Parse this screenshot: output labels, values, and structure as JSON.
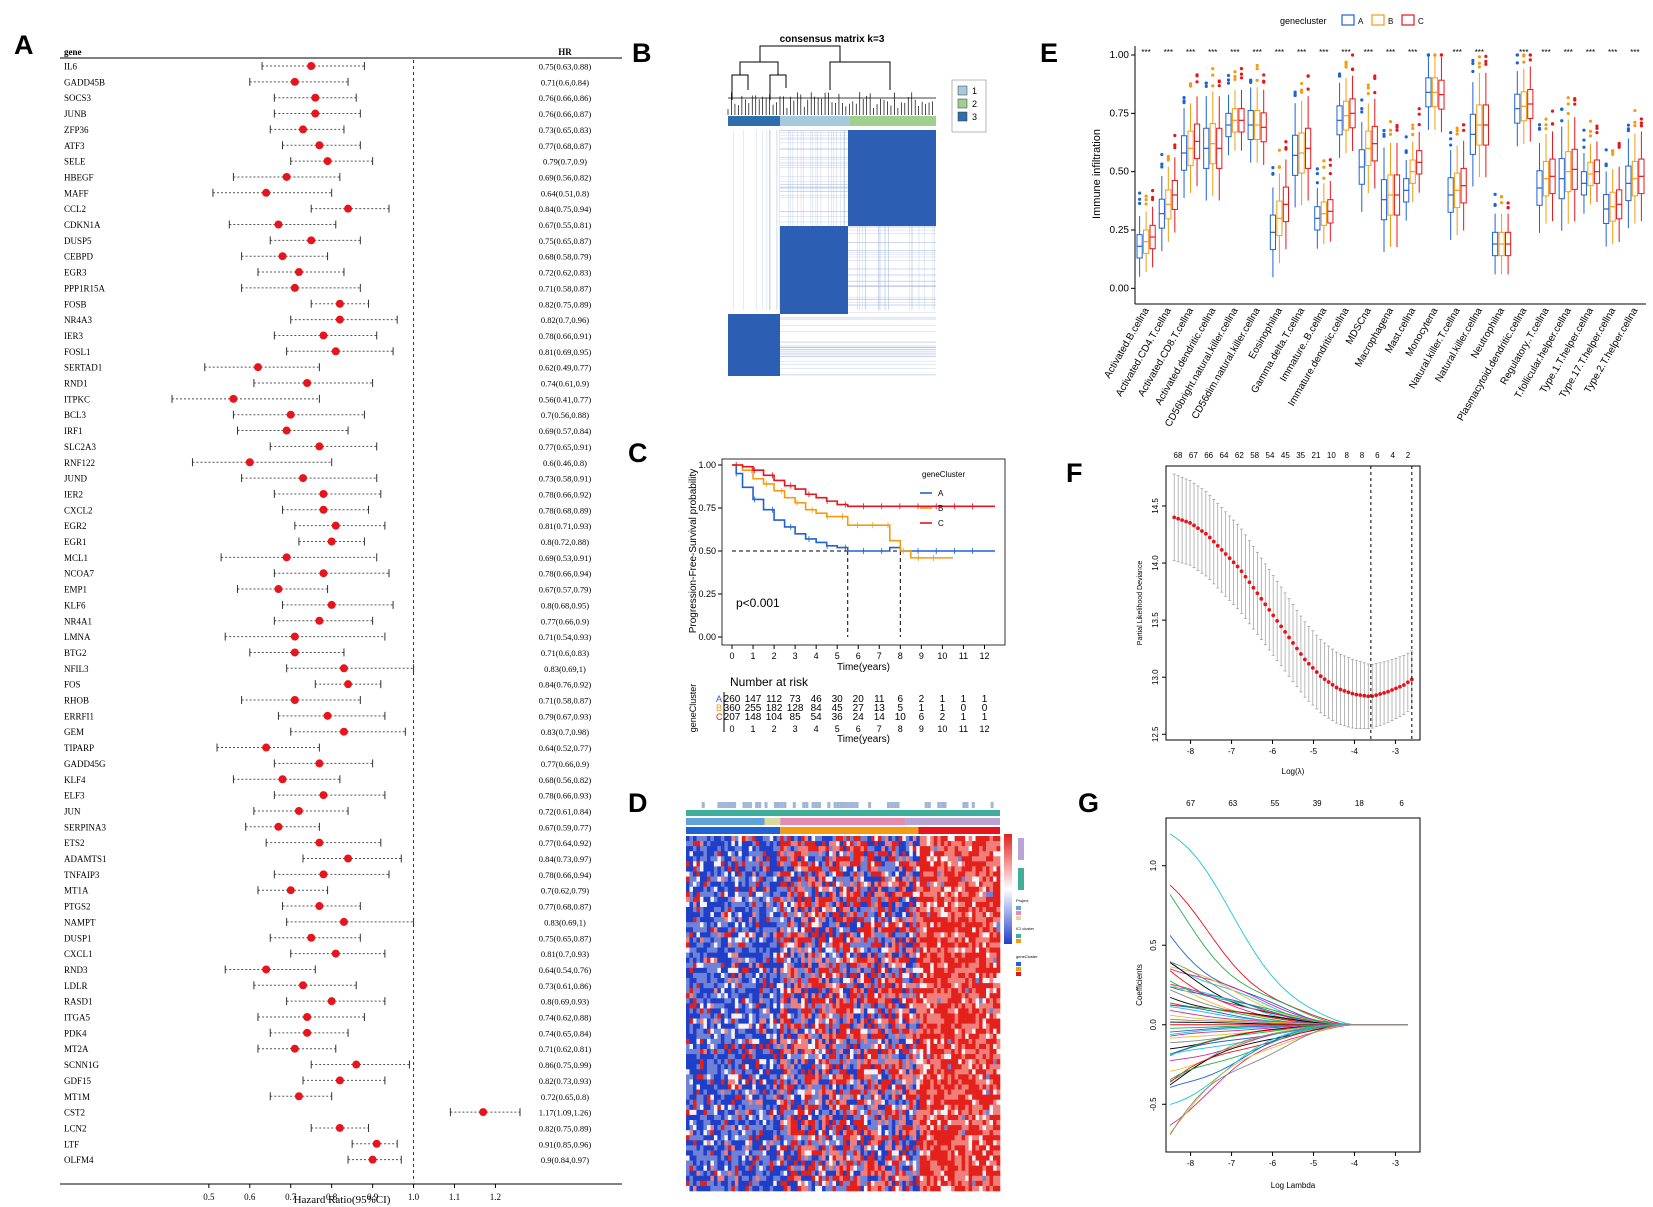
{
  "panel_labels": {
    "A": "A",
    "B": "B",
    "C": "C",
    "D": "D",
    "E": "E",
    "F": "F",
    "G": "G"
  },
  "colors": {
    "red": "#e8141b",
    "blue": "#1f62d6",
    "orange": "#f39c12",
    "grey": "#888888",
    "heat_blue": "#1f3fc9",
    "heat_red": "#e3201b"
  },
  "chart_data": [
    {
      "id": "A",
      "type": "forest",
      "col_gene": "gene",
      "col_hr": "HR",
      "xlabel": "Hazard Ratio(95%CI)",
      "xticks": [
        "0.5",
        "0.6",
        "0.7",
        "0.8",
        "0.9",
        "1.0",
        "1.1",
        "1.2"
      ],
      "xlim": [
        0.41,
        1.26
      ],
      "genes": [
        "IL6",
        "GADD45B",
        "SOCS3",
        "JUNB",
        "ZFP36",
        "ATF3",
        "SELE",
        "HBEGF",
        "MAFF",
        "CCL2",
        "CDKN1A",
        "DUSP5",
        "CEBPD",
        "EGR3",
        "PPP1R15A",
        "FOSB",
        "NR4A3",
        "IER3",
        "FOSL1",
        "SERTAD1",
        "RND1",
        "ITPKC",
        "BCL3",
        "IRF1",
        "SLC2A3",
        "RNF122",
        "JUND",
        "IER2",
        "CXCL2",
        "EGR2",
        "EGR1",
        "MCL1",
        "NCOA7",
        "EMP1",
        "KLF6",
        "NR4A1",
        "LMNA",
        "BTG2",
        "NFIL3",
        "FOS",
        "RHOB",
        "ERRFI1",
        "GEM",
        "TIPARP",
        "GADD45G",
        "KLF4",
        "ELF3",
        "JUN",
        "SERPINA3",
        "ETS2",
        "ADAMTS1",
        "TNFAIP3",
        "MT1A",
        "PTGS2",
        "NAMPT",
        "DUSP1",
        "CXCL1",
        "RND3",
        "LDLR",
        "RASD1",
        "ITGA5",
        "PDK4",
        "MT2A",
        "SCNN1G",
        "GDF15",
        "MT1M",
        "CST2",
        "LCN2",
        "LTF",
        "OLFM4"
      ],
      "hr_labels": [
        "0.75(0.63,0.88)",
        "0.71(0.6,0.84)",
        "0.76(0.66,0.86)",
        "0.76(0.66,0.87)",
        "0.73(0.65,0.83)",
        "0.77(0.68,0.87)",
        "0.79(0.7,0.9)",
        "0.69(0.56,0.82)",
        "0.64(0.51,0.8)",
        "0.84(0.75,0.94)",
        "0.67(0.55,0.81)",
        "0.75(0.65,0.87)",
        "0.68(0.58,0.79)",
        "0.72(0.62,0.83)",
        "0.71(0.58,0.87)",
        "0.82(0.75,0.89)",
        "0.82(0.7,0.96)",
        "0.78(0.66,0.91)",
        "0.81(0.69,0.95)",
        "0.62(0.49,0.77)",
        "0.74(0.61,0.9)",
        "0.56(0.41,0.77)",
        "0.7(0.56,0.88)",
        "0.69(0.57,0.84)",
        "0.77(0.65,0.91)",
        "0.6(0.46,0.8)",
        "0.73(0.58,0.91)",
        "0.78(0.66,0.92)",
        "0.78(0.68,0.89)",
        "0.81(0.71,0.93)",
        "0.8(0.72,0.88)",
        "0.69(0.53,0.91)",
        "0.78(0.66,0.94)",
        "0.67(0.57,0.79)",
        "0.8(0.68,0.95)",
        "0.77(0.66,0.9)",
        "0.71(0.54,0.93)",
        "0.71(0.6,0.83)",
        "0.83(0.69,1)",
        "0.84(0.76,0.92)",
        "0.71(0.58,0.87)",
        "0.79(0.67,0.93)",
        "0.83(0.7,0.98)",
        "0.64(0.52,0.77)",
        "0.77(0.66,0.9)",
        "0.68(0.56,0.82)",
        "0.78(0.66,0.93)",
        "0.72(0.61,0.84)",
        "0.67(0.59,0.77)",
        "0.77(0.64,0.92)",
        "0.84(0.73,0.97)",
        "0.78(0.66,0.94)",
        "0.7(0.62,0.79)",
        "0.77(0.68,0.87)",
        "0.83(0.69,1)",
        "0.75(0.65,0.87)",
        "0.81(0.7,0.93)",
        "0.64(0.54,0.76)",
        "0.73(0.61,0.86)",
        "0.8(0.69,0.93)",
        "0.74(0.62,0.88)",
        "0.74(0.65,0.84)",
        "0.71(0.62,0.81)",
        "0.86(0.75,0.99)",
        "0.82(0.73,0.93)",
        "0.72(0.65,0.8)",
        "1.17(1.09,1.26)",
        "0.82(0.75,0.89)",
        "0.91(0.85,0.96)",
        "0.9(0.84,0.97)"
      ],
      "hr": [
        0.75,
        0.71,
        0.76,
        0.76,
        0.73,
        0.77,
        0.79,
        0.69,
        0.64,
        0.84,
        0.67,
        0.75,
        0.68,
        0.72,
        0.71,
        0.82,
        0.82,
        0.78,
        0.81,
        0.62,
        0.74,
        0.56,
        0.7,
        0.69,
        0.77,
        0.6,
        0.73,
        0.78,
        0.78,
        0.81,
        0.8,
        0.69,
        0.78,
        0.67,
        0.8,
        0.77,
        0.71,
        0.71,
        0.83,
        0.84,
        0.71,
        0.79,
        0.83,
        0.64,
        0.77,
        0.68,
        0.78,
        0.72,
        0.67,
        0.77,
        0.84,
        0.78,
        0.7,
        0.77,
        0.83,
        0.75,
        0.81,
        0.64,
        0.73,
        0.8,
        0.74,
        0.74,
        0.71,
        0.86,
        0.82,
        0.72,
        1.17,
        0.82,
        0.91,
        0.9
      ],
      "lower": [
        0.63,
        0.6,
        0.66,
        0.66,
        0.65,
        0.68,
        0.7,
        0.56,
        0.51,
        0.75,
        0.55,
        0.65,
        0.58,
        0.62,
        0.58,
        0.75,
        0.7,
        0.66,
        0.69,
        0.49,
        0.61,
        0.41,
        0.56,
        0.57,
        0.65,
        0.46,
        0.58,
        0.66,
        0.68,
        0.71,
        0.72,
        0.53,
        0.66,
        0.57,
        0.68,
        0.66,
        0.54,
        0.6,
        0.69,
        0.76,
        0.58,
        0.67,
        0.7,
        0.52,
        0.66,
        0.56,
        0.66,
        0.61,
        0.59,
        0.64,
        0.73,
        0.66,
        0.62,
        0.68,
        0.69,
        0.65,
        0.7,
        0.54,
        0.61,
        0.69,
        0.62,
        0.65,
        0.62,
        0.75,
        0.73,
        0.65,
        1.09,
        0.75,
        0.85,
        0.84
      ],
      "upper": [
        0.88,
        0.84,
        0.86,
        0.87,
        0.83,
        0.87,
        0.9,
        0.82,
        0.8,
        0.94,
        0.81,
        0.87,
        0.79,
        0.83,
        0.87,
        0.89,
        0.96,
        0.91,
        0.95,
        0.77,
        0.9,
        0.77,
        0.88,
        0.84,
        0.91,
        0.8,
        0.91,
        0.92,
        0.89,
        0.93,
        0.88,
        0.91,
        0.94,
        0.79,
        0.95,
        0.9,
        0.93,
        0.83,
        1.0,
        0.92,
        0.87,
        0.93,
        0.98,
        0.77,
        0.9,
        0.82,
        0.93,
        0.84,
        0.77,
        0.92,
        0.97,
        0.94,
        0.79,
        0.87,
        1.0,
        0.87,
        0.93,
        0.76,
        0.86,
        0.93,
        0.88,
        0.84,
        0.81,
        0.99,
        0.93,
        0.8,
        1.26,
        0.89,
        0.96,
        0.97
      ]
    },
    {
      "id": "B",
      "type": "heatmap",
      "title": "consensus matrix k=3",
      "legend": [
        "1",
        "2",
        "3"
      ],
      "legend_colors": [
        "#a6c9dc",
        "#9fd08f",
        "#2e6eaa"
      ]
    },
    {
      "id": "C",
      "type": "line",
      "ylabel": "Progression-Free-Survival probability",
      "xlabel": "Time(years)",
      "xticks": [
        "0",
        "1",
        "2",
        "3",
        "4",
        "5",
        "6",
        "7",
        "8",
        "9",
        "10",
        "11",
        "12"
      ],
      "yticks": [
        "0.00",
        "0.25",
        "0.50",
        "0.75",
        "1.00"
      ],
      "xlim": [
        0,
        12.5
      ],
      "ylim": [
        0,
        1
      ],
      "pvalue": "p<0.001",
      "legend_title": "geneCluster",
      "series": [
        {
          "name": "A",
          "color": "#1f62d6",
          "x": [
            0,
            0.2,
            0.5,
            1,
            1.5,
            2,
            2.5,
            3,
            3.5,
            4,
            4.5,
            5,
            5.5,
            6,
            7,
            7.5,
            8,
            8.5,
            9,
            10,
            11,
            12,
            12.5
          ],
          "y": [
            1,
            0.95,
            0.87,
            0.8,
            0.74,
            0.68,
            0.64,
            0.6,
            0.57,
            0.55,
            0.53,
            0.52,
            0.5,
            0.5,
            0.5,
            0.52,
            0.5,
            0.5,
            0.5,
            0.5,
            0.5,
            0.5,
            0.5
          ]
        },
        {
          "name": "B",
          "color": "#f39c12",
          "x": [
            0,
            0.5,
            1,
            1.5,
            2,
            2.5,
            3,
            3.5,
            4,
            4.5,
            5,
            5.5,
            6,
            7,
            7.5,
            8,
            8.5,
            9,
            10,
            10.5
          ],
          "y": [
            1,
            0.97,
            0.92,
            0.89,
            0.85,
            0.81,
            0.78,
            0.74,
            0.72,
            0.7,
            0.7,
            0.65,
            0.65,
            0.65,
            0.56,
            0.5,
            0.46,
            0.46,
            0.46,
            0.46
          ]
        },
        {
          "name": "C",
          "color": "#e8141b",
          "x": [
            0,
            0.5,
            1,
            1.5,
            2,
            2.5,
            3,
            3.5,
            4,
            4.5,
            5,
            5.5,
            6,
            7,
            8,
            9,
            10,
            11,
            12,
            12.5
          ],
          "y": [
            1,
            0.99,
            0.97,
            0.94,
            0.91,
            0.88,
            0.86,
            0.83,
            0.81,
            0.79,
            0.77,
            0.76,
            0.76,
            0.76,
            0.76,
            0.76,
            0.76,
            0.76,
            0.76,
            0.76
          ]
        }
      ],
      "risk_table": {
        "title": "Number at risk",
        "ylabel": "geneCluster",
        "xlabel": "Time(years)",
        "rows": [
          {
            "name": "A",
            "values": [
              "260",
              "147",
              "112",
              "73",
              "46",
              "30",
              "20",
              "11",
              "6",
              "2",
              "1",
              "1",
              "1"
            ]
          },
          {
            "name": "B",
            "values": [
              "360",
              "255",
              "182",
              "128",
              "84",
              "45",
              "27",
              "13",
              "5",
              "1",
              "1",
              "0",
              "0"
            ]
          },
          {
            "name": "C",
            "values": [
              "207",
              "148",
              "104",
              "85",
              "54",
              "36",
              "24",
              "14",
              "10",
              "6",
              "2",
              "1",
              "1"
            ]
          }
        ]
      }
    },
    {
      "id": "D",
      "type": "heatmap",
      "legend_labels": [
        "Project",
        "ICI cluster",
        "geneCluster"
      ]
    },
    {
      "id": "E",
      "type": "box",
      "legend_title": "genecluster",
      "ylabel": "Immune infiltration",
      "yticks": [
        "0.00",
        "0.25",
        "0.50",
        "0.75",
        "1.00"
      ],
      "ylim": [
        -0.05,
        1.03
      ],
      "series_names": [
        "A",
        "B",
        "C"
      ],
      "series_colors": [
        "#1f62d6",
        "#f39c12",
        "#e8141b"
      ],
      "significance": "***",
      "categories": [
        "Activated.B.cellna",
        "Activated.CD4.T.cellna",
        "Activated.CD8.T.cellna",
        "Activated.dendritic.cellna",
        "CD56bright.natural.killer.cellna",
        "CD56dim.natural.killer.cellna",
        "Eosinophilna",
        "Gamma.delta.T.cellna",
        "Immature..B.cellna",
        "Immature.dendritic.cellna",
        "MDSCna",
        "Macrophagena",
        "Mast.cellna",
        "Monocytena",
        "Natural.killer.T.cellna",
        "Natural.killer.cellna",
        "Neutrophilna",
        "Plasmacytoid.dendritic.cellna",
        "Regulatory..T.cellna",
        "T.follicular.helper.cellna",
        "Type.1.T.helper.cellna",
        "Type.17.T.helper.cellna",
        "Type.2.T.helper.cellna"
      ],
      "sig_flags": [
        1,
        1,
        1,
        1,
        1,
        1,
        1,
        1,
        1,
        1,
        1,
        1,
        1,
        0,
        1,
        1,
        0,
        1,
        1,
        1,
        1,
        1,
        1
      ],
      "medians": [
        [
          0.18,
          0.2,
          0.22
        ],
        [
          0.32,
          0.36,
          0.4
        ],
        [
          0.58,
          0.6,
          0.63
        ],
        [
          0.6,
          0.62,
          0.6
        ],
        [
          0.7,
          0.72,
          0.72
        ],
        [
          0.7,
          0.7,
          0.69
        ],
        [
          0.24,
          0.3,
          0.36
        ],
        [
          0.57,
          0.58,
          0.6
        ],
        [
          0.3,
          0.32,
          0.33
        ],
        [
          0.72,
          0.74,
          0.75
        ],
        [
          0.52,
          0.6,
          0.62
        ],
        [
          0.38,
          0.4,
          0.4
        ],
        [
          0.42,
          0.5,
          0.54
        ],
        [
          0.84,
          0.84,
          0.83
        ],
        [
          0.4,
          0.42,
          0.44
        ],
        [
          0.66,
          0.7,
          0.7
        ],
        [
          0.19,
          0.19,
          0.19
        ],
        [
          0.77,
          0.78,
          0.79
        ],
        [
          0.43,
          0.47,
          0.48
        ],
        [
          0.47,
          0.5,
          0.51
        ],
        [
          0.45,
          0.49,
          0.5
        ],
        [
          0.34,
          0.35,
          0.36
        ],
        [
          0.45,
          0.47,
          0.48
        ]
      ]
    },
    {
      "id": "F",
      "type": "line",
      "xlabel": "Log(λ)",
      "ylabel": "Partial Likelihood Deviance",
      "xticks": [
        "-8",
        "-7",
        "-6",
        "-5",
        "-4",
        "-3"
      ],
      "yticks": [
        "12.5",
        "13.0",
        "13.5",
        "14.0",
        "14.5"
      ],
      "top_ticks": [
        "68",
        "67",
        "66",
        "64",
        "62",
        "58",
        "54",
        "45",
        "35",
        "21",
        "10",
        "8",
        "8",
        "6",
        "4",
        "2"
      ],
      "xlim": [
        -8.6,
        -2.4
      ],
      "ylim": [
        12.45,
        14.85
      ],
      "lambda_min": -3.6,
      "lambda_1se": -2.6,
      "curve_x": [
        -8.4,
        -8.0,
        -7.6,
        -7.2,
        -6.8,
        -6.4,
        -6.0,
        -5.6,
        -5.2,
        -4.8,
        -4.4,
        -4.0,
        -3.6,
        -3.2,
        -2.8,
        -2.6
      ],
      "curve_y": [
        14.4,
        14.35,
        14.25,
        14.1,
        13.95,
        13.75,
        13.55,
        13.35,
        13.15,
        13.0,
        12.9,
        12.85,
        12.83,
        12.87,
        12.93,
        12.98
      ],
      "curve_err": [
        0.38,
        0.37,
        0.37,
        0.37,
        0.37,
        0.36,
        0.35,
        0.34,
        0.33,
        0.32,
        0.31,
        0.3,
        0.28,
        0.27,
        0.26,
        0.25
      ]
    },
    {
      "id": "G",
      "type": "line",
      "xlabel": "Log Lambda",
      "ylabel": "Coefficients",
      "xticks": [
        "-8",
        "-7",
        "-6",
        "-5",
        "-4",
        "-3"
      ],
      "yticks": [
        "-0.5",
        "0.0",
        "0.5",
        "1.0"
      ],
      "top_ticks": [
        "67",
        "63",
        "55",
        "39",
        "18",
        "6"
      ],
      "xlim": [
        -8.6,
        -2.4
      ],
      "ylim": [
        -0.8,
        1.3
      ],
      "start_values": [
        1.2,
        0.78,
        0.72,
        0.55,
        0.45,
        0.41,
        0.38,
        0.36,
        0.34,
        0.32,
        0.3,
        0.28,
        0.26,
        0.24,
        0.22,
        0.2,
        0.18,
        0.16,
        0.14,
        0.12,
        0.1,
        0.08,
        0.06,
        0.04,
        0.02,
        0.0,
        -0.02,
        -0.04,
        -0.06,
        -0.08,
        -0.1,
        -0.12,
        -0.14,
        -0.16,
        -0.18,
        -0.2,
        -0.22,
        -0.25,
        -0.28,
        -0.31,
        -0.34,
        -0.37,
        -0.4,
        -0.45,
        -0.5,
        -0.56,
        -0.6,
        -0.68
      ]
    }
  ]
}
